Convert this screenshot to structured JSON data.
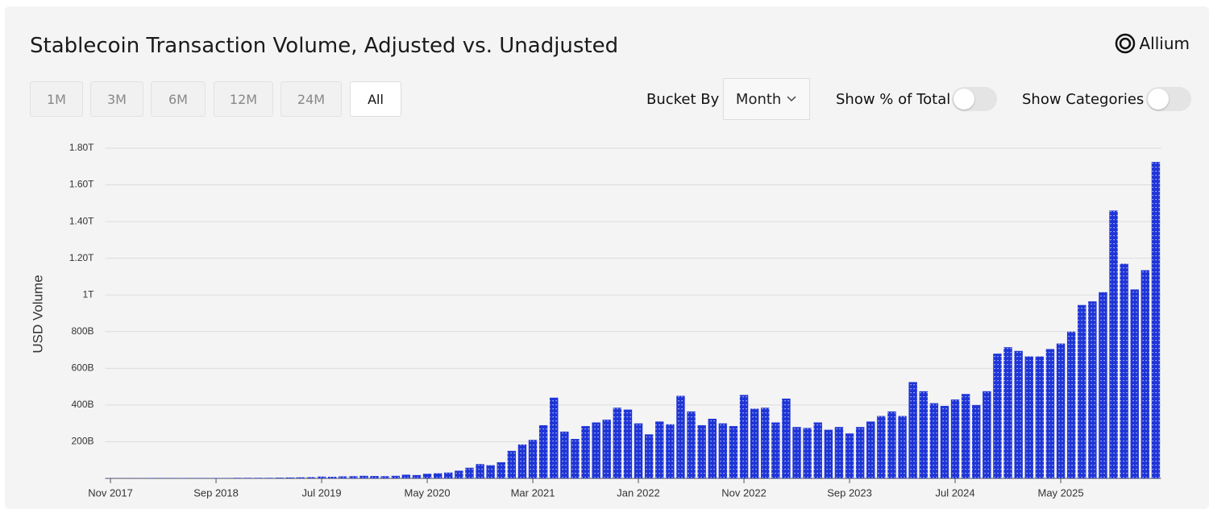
{
  "brand": "Allium",
  "controls": {
    "ranges": [
      "1M",
      "3M",
      "6M",
      "12M",
      "24M",
      "All"
    ],
    "active_range": "All",
    "bucket_label": "Bucket By",
    "bucket_value": "Month",
    "toggles": [
      "Show % of Total",
      "Show Categories"
    ]
  },
  "chart_data": {
    "type": "bar",
    "title": "Stablecoin Transaction Volume, Adjusted vs. Unadjusted",
    "y_label": "USD Volume",
    "color": "#1f35d6",
    "categories": [
      "Nov 2017",
      null,
      null,
      null,
      null,
      null,
      null,
      null,
      null,
      null,
      "Sep 2018",
      null,
      null,
      null,
      null,
      null,
      null,
      null,
      null,
      null,
      "Jul 2019",
      null,
      null,
      null,
      null,
      null,
      null,
      null,
      null,
      null,
      "May 2020",
      null,
      null,
      null,
      null,
      null,
      null,
      null,
      null,
      null,
      "Mar 2021",
      null,
      null,
      null,
      null,
      null,
      null,
      null,
      null,
      null,
      "Jan 2022",
      null,
      null,
      null,
      null,
      null,
      null,
      null,
      null,
      null,
      "Nov 2022",
      null,
      null,
      null,
      null,
      null,
      null,
      null,
      null,
      null,
      "Sep 2023",
      null,
      null,
      null,
      null,
      null,
      null,
      null,
      null,
      null,
      "Jul 2024",
      null,
      null,
      null,
      null,
      null,
      null,
      null,
      null,
      null,
      "May 2025",
      null,
      null,
      null,
      null,
      null,
      null,
      null,
      null,
      null
    ],
    "values": [
      1,
      1,
      1,
      1,
      2,
      2,
      2,
      2,
      2,
      2,
      2,
      2,
      3,
      3,
      3,
      3,
      4,
      5,
      6,
      7,
      10,
      9,
      11,
      12,
      14,
      13,
      12,
      14,
      20,
      18,
      25,
      28,
      32,
      42,
      58,
      78,
      72,
      88,
      150,
      185,
      210,
      290,
      440,
      255,
      215,
      285,
      305,
      320,
      385,
      375,
      300,
      240,
      310,
      295,
      450,
      365,
      290,
      325,
      300,
      285,
      455,
      380,
      385,
      305,
      435,
      280,
      275,
      305,
      265,
      280,
      245,
      280,
      310,
      340,
      365,
      340,
      525,
      475,
      410,
      395,
      430,
      460,
      400,
      475,
      680,
      715,
      695,
      665,
      665,
      705,
      735,
      800,
      945,
      965,
      1015,
      1460,
      1170,
      1030,
      1135,
      1725
    ],
    "ylim": [
      0,
      1800
    ],
    "yticks": [
      0,
      {
        "value": 200,
        "label": "200B"
      },
      {
        "value": 400,
        "label": "400B"
      },
      {
        "value": 600,
        "label": "600B"
      },
      {
        "value": 800,
        "label": "800B"
      },
      {
        "value": 1000,
        "label": "1T"
      },
      {
        "value": 1200,
        "label": "1.20T"
      },
      {
        "value": 1400,
        "label": "1.40T"
      },
      {
        "value": 1600,
        "label": "1.60T"
      },
      {
        "value": 1800,
        "label": "1.80T"
      }
    ],
    "grid": true
  }
}
